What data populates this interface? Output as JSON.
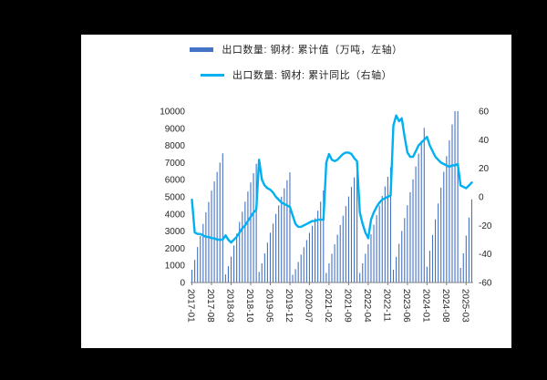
{
  "page": {
    "background": "#000000",
    "panel_background": "#ffffff"
  },
  "legend": {
    "items": [
      {
        "label": "出口数量: 钢材: 累计值（万吨，左轴）",
        "color": "#4472c4",
        "series_type": "bar"
      },
      {
        "label": "出口数量: 钢材: 累计同比（右轴）",
        "color": "#00b0f0",
        "series_type": "line"
      }
    ]
  },
  "chart_data": {
    "type": "combo bar+line",
    "title": "",
    "xlabel": "",
    "grid": false,
    "legend_position": "top",
    "x": [
      "2017-01",
      "2017-02",
      "2017-03",
      "2017-04",
      "2017-05",
      "2017-06",
      "2017-07",
      "2017-08",
      "2017-09",
      "2017-10",
      "2017-11",
      "2017-12",
      "2018-01",
      "2018-02",
      "2018-03",
      "2018-04",
      "2018-05",
      "2018-06",
      "2018-07",
      "2018-08",
      "2018-09",
      "2018-10",
      "2018-11",
      "2018-12",
      "2019-01",
      "2019-02",
      "2019-03",
      "2019-04",
      "2019-05",
      "2019-06",
      "2019-07",
      "2019-08",
      "2019-09",
      "2019-10",
      "2019-11",
      "2019-12",
      "2020-01",
      "2020-02",
      "2020-03",
      "2020-04",
      "2020-05",
      "2020-06",
      "2020-07",
      "2020-08",
      "2020-09",
      "2020-10",
      "2020-11",
      "2020-12",
      "2021-01",
      "2021-02",
      "2021-03",
      "2021-04",
      "2021-05",
      "2021-06",
      "2021-07",
      "2021-08",
      "2021-09",
      "2021-10",
      "2021-11",
      "2021-12",
      "2022-01",
      "2022-02",
      "2022-03",
      "2022-04",
      "2022-05",
      "2022-06",
      "2022-07",
      "2022-08",
      "2022-09",
      "2022-10",
      "2022-11",
      "2022-12",
      "2023-01",
      "2023-02",
      "2023-03",
      "2023-04",
      "2023-05",
      "2023-06",
      "2023-07",
      "2023-08",
      "2023-09",
      "2023-10",
      "2023-11",
      "2023-12",
      "2024-01",
      "2024-02",
      "2024-03",
      "2024-04",
      "2024-05",
      "2024-06",
      "2024-07",
      "2024-08",
      "2024-09",
      "2024-10",
      "2024-11",
      "2024-12",
      "2025-01",
      "2025-02",
      "2025-03",
      "2025-04",
      "2025-05"
    ],
    "x_tick_labels": [
      "2017-01",
      "2017-08",
      "2018-03",
      "2018-10",
      "2019-05",
      "2019-12",
      "2020-07",
      "2021-02",
      "2021-09",
      "2022-04",
      "2022-11",
      "2023-06",
      "2024-01",
      "2024-08",
      "2025-03"
    ],
    "left_axis": {
      "min": 0,
      "max": 10000,
      "tick_step": 1000,
      "ticks": [
        0,
        1000,
        2000,
        3000,
        4000,
        5000,
        6000,
        7000,
        8000,
        9000,
        10000
      ]
    },
    "right_axis": {
      "min": -60,
      "max": 60,
      "tick_step": 20,
      "ticks": [
        -60,
        -40,
        -20,
        0,
        20,
        40,
        60
      ]
    },
    "series": [
      {
        "name": "出口数量: 钢材: 累计值（万吨，左轴）",
        "type": "bar",
        "axis": "left",
        "color": "#4472c4",
        "values": [
          740,
          1320,
          2070,
          2720,
          3420,
          4100,
          4700,
          5360,
          5900,
          6450,
          7000,
          7540,
          470,
          950,
          1510,
          2160,
          2850,
          3540,
          4130,
          4720,
          5310,
          5840,
          6380,
          6930,
          620,
          1120,
          1700,
          2330,
          2910,
          3440,
          4000,
          4500,
          5010,
          5500,
          5970,
          6430,
          450,
          780,
          1200,
          1630,
          2060,
          2480,
          2900,
          3320,
          3750,
          4190,
          4720,
          5370,
          560,
          1120,
          1680,
          2230,
          2790,
          3350,
          3900,
          4460,
          5020,
          5580,
          6130,
          6690,
          560,
          1120,
          1680,
          2240,
          2810,
          3370,
          3930,
          4490,
          5050,
          5610,
          6170,
          6730,
          750,
          1500,
          2260,
          3010,
          3760,
          4510,
          5270,
          6020,
          6770,
          7520,
          8270,
          9030,
          920,
          1850,
          2770,
          3690,
          4610,
          5540,
          6460,
          7380,
          8300,
          9230,
          10150,
          11070,
          850,
          1700,
          2740,
          3790,
          4850
        ]
      },
      {
        "name": "出口数量: 钢材: 累计同比（右轴）",
        "type": "line",
        "axis": "right",
        "color": "#00b0f0",
        "values": [
          -2,
          -25,
          -26,
          -26,
          -27,
          -28,
          -28,
          -29,
          -29,
          -30,
          -30,
          -30,
          -27,
          -30,
          -32,
          -30,
          -28,
          -25,
          -22,
          -20,
          -17,
          -14,
          -11,
          -9,
          26,
          12,
          8,
          6,
          5,
          3,
          0,
          -2,
          -4,
          -5,
          -6,
          -7,
          -13,
          -19,
          -21,
          -21,
          -20,
          -19,
          -18,
          -17,
          -17,
          -16,
          -16,
          -16,
          24,
          30,
          26,
          25,
          26,
          28,
          30,
          31,
          31,
          30,
          27,
          25,
          -11,
          -19,
          -25,
          -29,
          -16,
          -11,
          -7,
          -4,
          -2,
          -1,
          0,
          1,
          50,
          57,
          53,
          55,
          42,
          31,
          28,
          28,
          32,
          36,
          38,
          40,
          42,
          36,
          32,
          28,
          26,
          24,
          23,
          22,
          21,
          22,
          22,
          23,
          8,
          7,
          6,
          8,
          10
        ]
      }
    ]
  }
}
